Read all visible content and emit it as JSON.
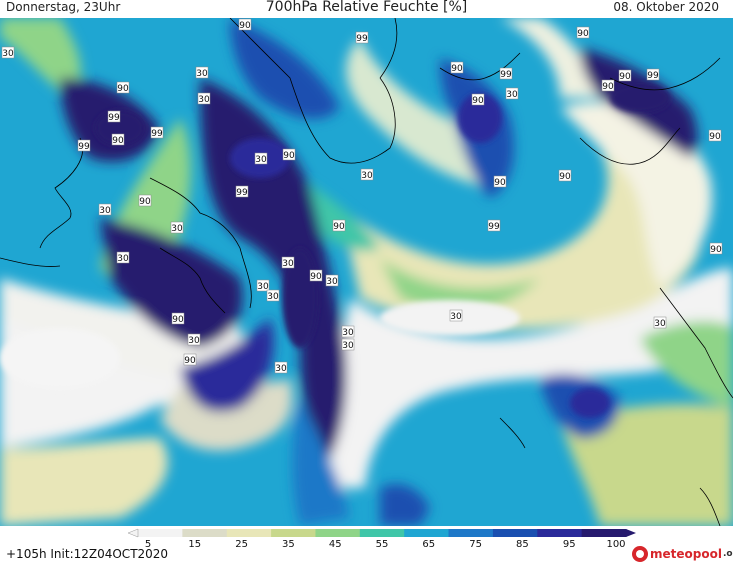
{
  "header": {
    "left": "Donnerstag, 23Uhr",
    "center": "700hPa Relative Feuchte [%]",
    "right": "08. Oktober 2020"
  },
  "footer": {
    "init": "+105h Init:12Z04OCT2020",
    "logo_text": "meteopool",
    "logo_tld": ".org"
  },
  "map": {
    "contour_labels": [
      "90",
      "99",
      "30",
      "90",
      "99",
      "90",
      "30",
      "90",
      "99",
      "90",
      "99",
      "90",
      "30",
      "90",
      "90",
      "99",
      "90",
      "30",
      "90",
      "99",
      "30",
      "30",
      "90",
      "90",
      "99",
      "90",
      "30",
      "30",
      "90",
      "99",
      "90",
      "30",
      "30",
      "90",
      "30",
      "30",
      "30",
      "90",
      "30",
      "30",
      "30",
      "30",
      "30",
      "90",
      "30"
    ]
  },
  "legend": {
    "ticks": [
      "5",
      "15",
      "25",
      "35",
      "45",
      "55",
      "65",
      "75",
      "85",
      "95",
      "100"
    ],
    "colors": [
      "#f3f3f3",
      "#dcdcc8",
      "#e8e6b8",
      "#c8d88c",
      "#8fd488",
      "#3fc6a8",
      "#1fa6d2",
      "#1e78c8",
      "#1a4fb0",
      "#2a2a9a",
      "#261a6e"
    ]
  }
}
